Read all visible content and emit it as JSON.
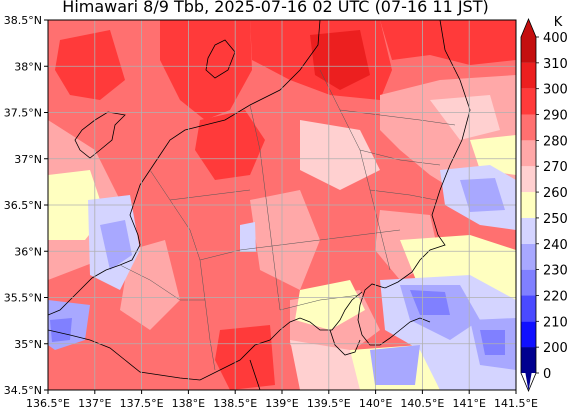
{
  "title": "Himawari 8/9 Tbb, 2025-07-16 02 UTC (07-16 11 JST)",
  "map": {
    "lon_range": [
      136.5,
      141.5
    ],
    "lat_range": [
      34.5,
      38.5
    ],
    "grid": true,
    "x_ticks": [
      "136.5°E",
      "137°E",
      "137.5°E",
      "138°E",
      "138.5°E",
      "139°E",
      "139.5°E",
      "140°E",
      "140.5°E",
      "141°E",
      "141.5°E"
    ],
    "y_ticks": [
      "38.5°N",
      "38°N",
      "37.5°N",
      "37°N",
      "36.5°N",
      "36°N",
      "35.5°N",
      "35°N",
      "34.5°N"
    ]
  },
  "colorbar": {
    "unit": "K",
    "levels": [
      0,
      200,
      210,
      220,
      230,
      240,
      250,
      260,
      270,
      280,
      290,
      300,
      310,
      400
    ],
    "colors": [
      "#00008f",
      "#1010ff",
      "#4a4aff",
      "#8080ff",
      "#a8a8ff",
      "#d4d4ff",
      "#ffffc0",
      "#ffd0d0",
      "#ffa8a8",
      "#ff7070",
      "#ff3a3a",
      "#ec1f1f",
      "#c40f0f"
    ],
    "extend": "min"
  }
}
